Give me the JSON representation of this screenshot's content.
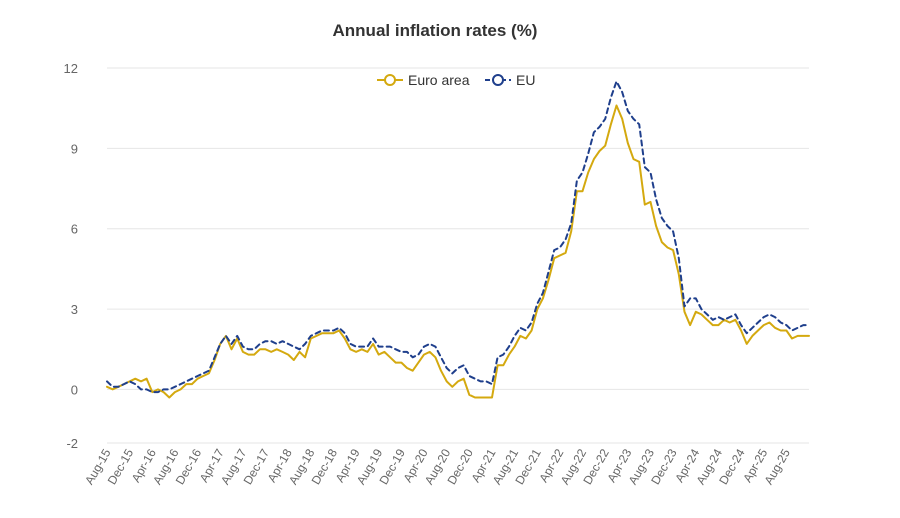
{
  "chart_data": {
    "type": "line",
    "title": "Annual inflation rates (%)",
    "xlabel": "",
    "ylabel": "",
    "ylim": [
      -2,
      12
    ],
    "yticks": [
      -2,
      0,
      3,
      6,
      9,
      12
    ],
    "grid": true,
    "legend_position": "top-center",
    "x_tick_labels": [
      "Aug-15",
      "Dec-15",
      "Apr-16",
      "Aug-16",
      "Dec-16",
      "Apr-17",
      "Aug-17",
      "Dec-17",
      "Apr-18",
      "Aug-18",
      "Dec-18",
      "Apr-19",
      "Aug-19",
      "Dec-19",
      "Apr-20",
      "Aug-20",
      "Dec-20",
      "Apr-21",
      "Aug-21",
      "Dec-21",
      "Apr-22",
      "Aug-22",
      "Dec-22",
      "Apr-23",
      "Aug-23",
      "Dec-23",
      "Apr-24",
      "Aug-24",
      "Dec-24",
      "Apr-25",
      "Aug-25"
    ],
    "series": [
      {
        "name": "Euro area",
        "color": "#d4a90f",
        "style": "solid",
        "values": [
          0.1,
          0.0,
          0.1,
          0.2,
          0.3,
          0.4,
          0.3,
          0.4,
          -0.1,
          0.0,
          -0.1,
          -0.3,
          -0.1,
          0.0,
          0.2,
          0.2,
          0.4,
          0.5,
          0.6,
          1.1,
          1.7,
          2.0,
          1.5,
          1.9,
          1.4,
          1.3,
          1.3,
          1.5,
          1.5,
          1.4,
          1.5,
          1.4,
          1.3,
          1.1,
          1.4,
          1.2,
          1.9,
          2.0,
          2.1,
          2.1,
          2.1,
          2.2,
          1.9,
          1.5,
          1.4,
          1.5,
          1.4,
          1.7,
          1.3,
          1.4,
          1.2,
          1.0,
          1.0,
          0.8,
          0.7,
          1.0,
          1.3,
          1.4,
          1.2,
          0.7,
          0.3,
          0.1,
          0.3,
          0.4,
          -0.2,
          -0.3,
          -0.3,
          -0.3,
          -0.3,
          0.9,
          0.9,
          1.3,
          1.6,
          2.0,
          1.9,
          2.2,
          3.0,
          3.4,
          4.1,
          4.9,
          5.0,
          5.1,
          5.9,
          7.4,
          7.4,
          8.1,
          8.6,
          8.9,
          9.1,
          9.9,
          10.6,
          10.1,
          9.2,
          8.6,
          8.5,
          6.9,
          7.0,
          6.1,
          5.5,
          5.3,
          5.2,
          4.3,
          2.9,
          2.4,
          2.9,
          2.8,
          2.6,
          2.4,
          2.4,
          2.6,
          2.5,
          2.6,
          2.2,
          1.7,
          2.0,
          2.2,
          2.4,
          2.5,
          2.3,
          2.2,
          2.2,
          1.9,
          2.0,
          2.0,
          2.0
        ]
      },
      {
        "name": "EU",
        "color": "#1f3f8c",
        "style": "dashed",
        "values": [
          0.3,
          0.1,
          0.1,
          0.2,
          0.3,
          0.2,
          0.0,
          0.0,
          -0.1,
          -0.1,
          0.0,
          0.0,
          0.1,
          0.2,
          0.3,
          0.4,
          0.5,
          0.6,
          0.7,
          1.2,
          1.7,
          2.0,
          1.7,
          2.0,
          1.6,
          1.5,
          1.5,
          1.7,
          1.8,
          1.8,
          1.7,
          1.8,
          1.7,
          1.6,
          1.5,
          1.7,
          2.0,
          2.1,
          2.2,
          2.2,
          2.2,
          2.3,
          2.1,
          1.7,
          1.6,
          1.6,
          1.6,
          1.9,
          1.6,
          1.6,
          1.6,
          1.5,
          1.4,
          1.4,
          1.2,
          1.3,
          1.6,
          1.7,
          1.6,
          1.2,
          0.8,
          0.6,
          0.8,
          0.9,
          0.5,
          0.4,
          0.3,
          0.3,
          0.2,
          1.2,
          1.3,
          1.6,
          2.0,
          2.3,
          2.2,
          2.5,
          3.2,
          3.6,
          4.4,
          5.2,
          5.3,
          5.6,
          6.2,
          7.8,
          8.1,
          8.8,
          9.6,
          9.8,
          10.1,
          10.9,
          11.5,
          11.1,
          10.4,
          10.1,
          9.9,
          8.3,
          8.1,
          7.1,
          6.4,
          6.1,
          5.9,
          4.9,
          3.1,
          3.4,
          3.4,
          3.0,
          2.8,
          2.6,
          2.7,
          2.6,
          2.7,
          2.8,
          2.4,
          2.1,
          2.3,
          2.5,
          2.7,
          2.8,
          2.7,
          2.5,
          2.4,
          2.2,
          2.3,
          2.4,
          2.4
        ]
      }
    ]
  }
}
